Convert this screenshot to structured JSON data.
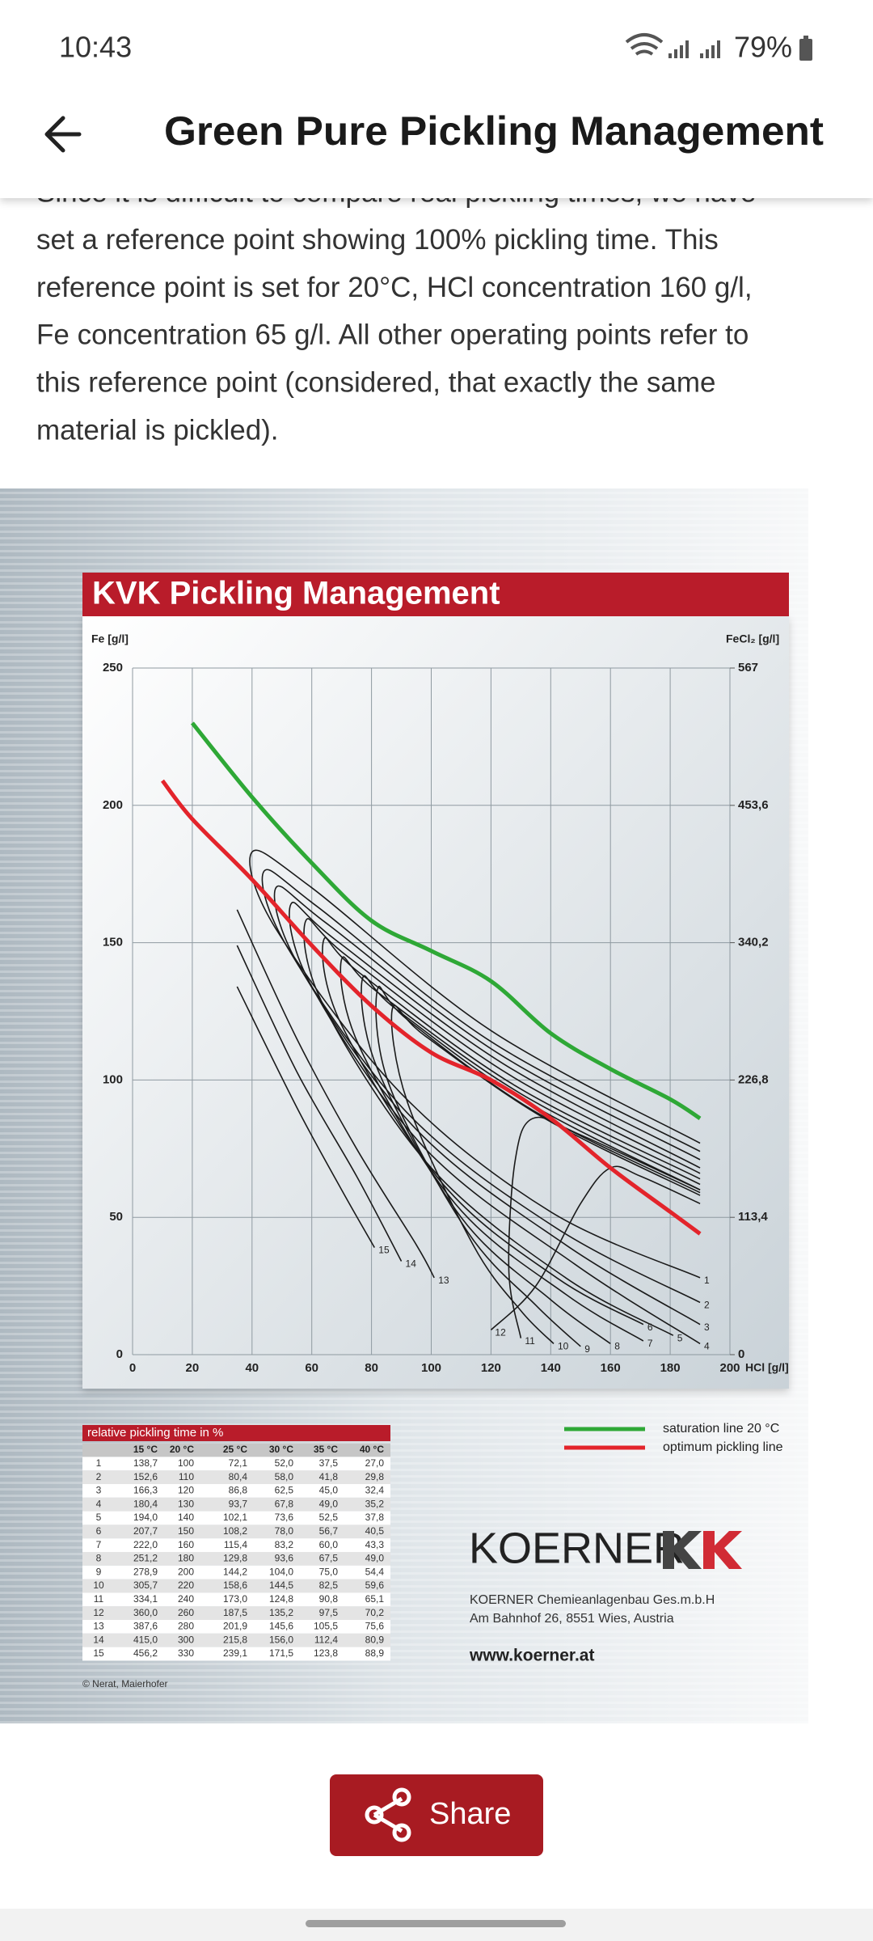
{
  "status_bar": {
    "time": "10:43",
    "battery": "79%"
  },
  "header": {
    "title": "Green Pure Pickling Management"
  },
  "article": {
    "lines": [
      "Since it is difficult to compare real pickling times, we have",
      "set a reference point showing 100% pickling time. This",
      "reference point is set for 20°C, HCl concentration 160 g/l,",
      "Fe concentration 65 g/l. All other operating points refer to",
      "this reference point (considered, that exactly the same",
      "material is pickled)."
    ]
  },
  "chart_data": {
    "type": "line",
    "title": "KVK Pickling Management",
    "x_label": "HCl [g/l]",
    "y_label": "Fe [g/l]",
    "y2_label": "FeCl₂ [g/l]",
    "xlim": [
      0,
      200
    ],
    "xticks": [
      0,
      20,
      40,
      60,
      80,
      100,
      120,
      140,
      160,
      180,
      200
    ],
    "ylim": [
      0,
      250
    ],
    "yticks": [
      0,
      50,
      100,
      150,
      200,
      250
    ],
    "y2lim": [
      0,
      567
    ],
    "y2ticks": [
      0,
      {
        "value": 113.4,
        "label": "113,4"
      },
      {
        "value": 226.8,
        "label": "226,8"
      },
      {
        "value": 340.2,
        "label": "340,2"
      },
      {
        "value": 453.6,
        "label": "453,6"
      },
      567
    ],
    "grid": true,
    "legend": "bottom-right",
    "series": [
      {
        "name": "saturation line 20 °C",
        "color": "#2ea836",
        "x": [
          20,
          40,
          60,
          80,
          100,
          120,
          140,
          160,
          180,
          190
        ],
        "values": [
          230,
          203,
          179,
          158,
          147,
          136,
          117,
          104,
          93,
          86
        ]
      },
      {
        "name": "optimum pickling line",
        "color": "#e3242b",
        "x": [
          10,
          20,
          40,
          60,
          80,
          100,
          120,
          140,
          160,
          180,
          190
        ],
        "values": [
          209,
          195,
          173,
          149,
          127,
          110,
          100,
          86,
          68,
          52,
          44
        ]
      }
    ],
    "contours": [
      {
        "name": "1",
        "color": "#1a1a1a",
        "x": [
          190,
          120,
          60,
          40,
          48,
          90,
          140,
          190
        ],
        "values": [
          77,
          118,
          170,
          183,
          155,
          95,
          52,
          28
        ]
      },
      {
        "name": "2",
        "color": "#1a1a1a",
        "x": [
          190,
          120,
          62,
          44,
          52,
          92,
          142,
          190
        ],
        "values": [
          74,
          114,
          163,
          176,
          148,
          88,
          46,
          19
        ]
      },
      {
        "name": "3",
        "color": "#1a1a1a",
        "x": [
          190,
          122,
          65,
          48,
          56,
          95,
          145,
          190
        ],
        "values": [
          71,
          110,
          157,
          170,
          141,
          82,
          40,
          11
        ]
      },
      {
        "name": "4",
        "color": "#1a1a1a",
        "x": [
          190,
          124,
          68,
          53,
          60,
          98,
          148,
          190
        ],
        "values": [
          68,
          106,
          151,
          164,
          134,
          75,
          33,
          4
        ]
      },
      {
        "name": "5",
        "color": "#1a1a1a",
        "x": [
          190,
          126,
          72,
          58,
          64,
          100,
          145,
          181
        ],
        "values": [
          66,
          102,
          145,
          158,
          127,
          68,
          28,
          7
        ]
      },
      {
        "name": "6",
        "color": "#1a1a1a",
        "x": [
          190,
          128,
          76,
          64,
          70,
          104,
          142,
          171
        ],
        "values": [
          64,
          98,
          139,
          151,
          120,
          62,
          28,
          11
        ]
      },
      {
        "name": "7",
        "color": "#1a1a1a",
        "x": [
          190,
          130,
          82,
          70,
          76,
          108,
          145,
          171
        ],
        "values": [
          62,
          95,
          132,
          144,
          112,
          55,
          22,
          5
        ]
      },
      {
        "name": "8",
        "color": "#1a1a1a",
        "x": [
          190,
          132,
          88,
          77,
          82,
          110,
          140,
          160
        ],
        "values": [
          60,
          92,
          126,
          137,
          104,
          50,
          20,
          4
        ]
      },
      {
        "name": "9",
        "color": "#1a1a1a",
        "x": [
          190,
          134,
          92,
          82,
          86,
          112,
          135,
          150
        ],
        "values": [
          59,
          89,
          122,
          133,
          98,
          45,
          18,
          3
        ]
      },
      {
        "name": "10",
        "color": "#1a1a1a",
        "x": [
          190,
          138,
          98,
          87,
          92,
          114,
          130,
          141
        ],
        "values": [
          58,
          86,
          116,
          126,
          92,
          40,
          16,
          4
        ]
      },
      {
        "name": "11",
        "color": "#1a1a1a",
        "x": [
          190,
          150,
          134,
          128,
          126,
          130
        ],
        "values": [
          60,
          80,
          86,
          70,
          30,
          6
        ]
      },
      {
        "name": "12",
        "color": "#1a1a1a",
        "x": [
          190,
          170,
          160,
          150,
          135,
          120
        ],
        "values": [
          55,
          65,
          68,
          55,
          25,
          9
        ]
      },
      {
        "name": "13",
        "color": "#1a1a1a",
        "x": [
          35,
          55,
          75,
          95,
          101
        ],
        "values": [
          162,
          115,
          75,
          40,
          28
        ]
      },
      {
        "name": "14",
        "color": "#1a1a1a",
        "x": [
          35,
          55,
          75,
          90
        ],
        "values": [
          149,
          103,
          65,
          34
        ]
      },
      {
        "name": "15",
        "color": "#1a1a1a",
        "x": [
          35,
          55,
          70,
          81
        ],
        "values": [
          134,
          90,
          60,
          39
        ]
      }
    ]
  },
  "table": {
    "title": "relative pickling time in %",
    "columns": [
      "15 °C",
      "20 °C",
      "25 °C",
      "30 °C",
      "35 °C",
      "40 °C"
    ],
    "rows": [
      [
        "1",
        "138,7",
        "100",
        "72,1",
        "52,0",
        "37,5",
        "27,0"
      ],
      [
        "2",
        "152,6",
        "110",
        "80,4",
        "58,0",
        "41,8",
        "29,8"
      ],
      [
        "3",
        "166,3",
        "120",
        "86,8",
        "62,5",
        "45,0",
        "32,4"
      ],
      [
        "4",
        "180,4",
        "130",
        "93,7",
        "67,8",
        "49,0",
        "35,2"
      ],
      [
        "5",
        "194,0",
        "140",
        "102,1",
        "73,6",
        "52,5",
        "37,8"
      ],
      [
        "6",
        "207,7",
        "150",
        "108,2",
        "78,0",
        "56,7",
        "40,5"
      ],
      [
        "7",
        "222,0",
        "160",
        "115,4",
        "83,2",
        "60,0",
        "43,3"
      ],
      [
        "8",
        "251,2",
        "180",
        "129,8",
        "93,6",
        "67,5",
        "49,0"
      ],
      [
        "9",
        "278,9",
        "200",
        "144,2",
        "104,0",
        "75,0",
        "54,4"
      ],
      [
        "10",
        "305,7",
        "220",
        "158,6",
        "144,5",
        "82,5",
        "59,6"
      ],
      [
        "11",
        "334,1",
        "240",
        "173,0",
        "124,8",
        "90,8",
        "65,1"
      ],
      [
        "12",
        "360,0",
        "260",
        "187,5",
        "135,2",
        "97,5",
        "70,2"
      ],
      [
        "13",
        "387,6",
        "280",
        "201,9",
        "145,6",
        "105,5",
        "75,6"
      ],
      [
        "14",
        "415,0",
        "300",
        "215,8",
        "156,0",
        "112,4",
        "80,9"
      ],
      [
        "15",
        "456,2",
        "330",
        "239,1",
        "171,5",
        "123,8",
        "88,9"
      ]
    ]
  },
  "company": {
    "brand": "KOERNER",
    "name": "KOERNER Chemieanlagenbau Ges.m.b.H",
    "address": "Am Bahnhof 26, 8551 Wies, Austria",
    "website": "www.koerner.at"
  },
  "credit": "© Nerat, Maierhofer",
  "share_button": {
    "label": "Share"
  }
}
